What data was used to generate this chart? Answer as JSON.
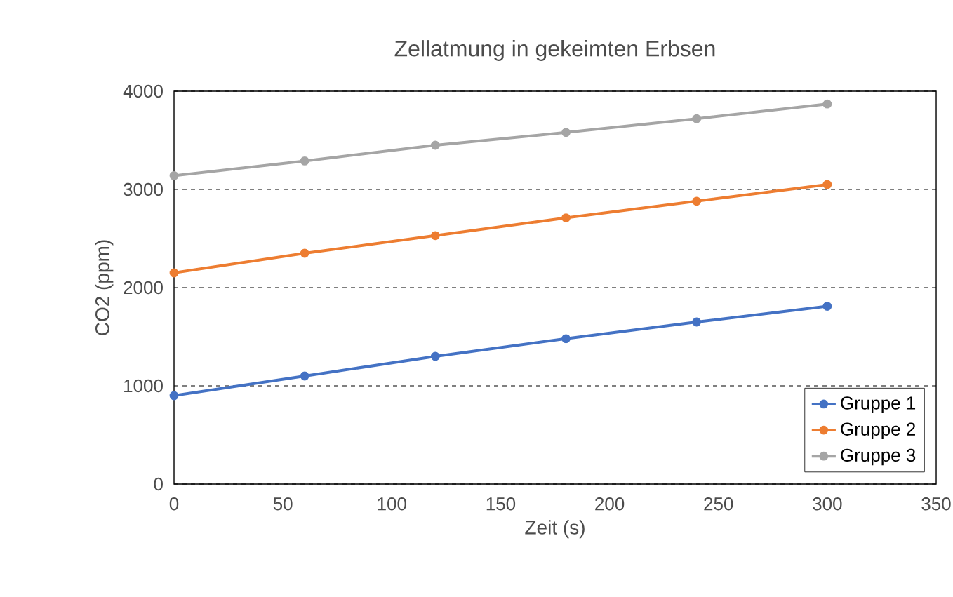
{
  "chart_data": {
    "type": "line",
    "title": "Zellatmung in gekeimten Erbsen",
    "xlabel": "Zeit (s)",
    "ylabel": "CO2 (ppm)",
    "x": [
      0,
      60,
      120,
      180,
      240,
      300
    ],
    "series": [
      {
        "name": "Gruppe 1",
        "color": "#4472c4",
        "values": [
          900,
          1100,
          1300,
          1480,
          1650,
          1810
        ]
      },
      {
        "name": "Gruppe 2",
        "color": "#ed7d31",
        "values": [
          2150,
          2350,
          2530,
          2710,
          2880,
          3050
        ]
      },
      {
        "name": "Gruppe 3",
        "color": "#a5a5a5",
        "values": [
          3140,
          3290,
          3450,
          3580,
          3720,
          3870
        ]
      }
    ],
    "xlim": [
      0,
      350
    ],
    "xticks": [
      0,
      50,
      100,
      150,
      200,
      250,
      300,
      350
    ],
    "ylim": [
      0,
      4000
    ],
    "yticks": [
      0,
      1000,
      2000,
      3000,
      4000
    ],
    "grid": "y",
    "legend": "bottom right",
    "marker": "circle",
    "line_style": "solid"
  }
}
